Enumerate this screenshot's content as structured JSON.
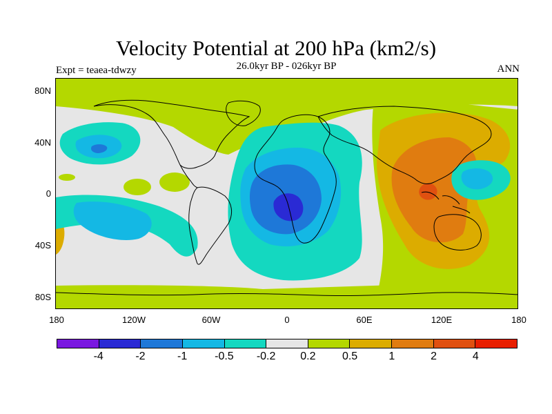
{
  "title": "Velocity Potential at 200 hPa (km2/s)",
  "subtitle": "26.0kyr BP - 026kyr BP",
  "expt_label": "Expt = teaea-tdwzy",
  "season": "ANN",
  "lat_ticks": [
    "80N",
    "40N",
    "0",
    "40S",
    "80S"
  ],
  "lon_ticks": [
    "180",
    "120W",
    "60W",
    "0",
    "60E",
    "120E",
    "180"
  ],
  "colorbar": {
    "colors": [
      "#7a18e0",
      "#2a2ad4",
      "#1e78d8",
      "#14b8e4",
      "#14d8c0",
      "#e6e6e6",
      "#b4d800",
      "#dcac00",
      "#e07c10",
      "#e05010",
      "#e81e00"
    ],
    "labels": [
      "-4",
      "-2",
      "-1",
      "-0.5",
      "-0.2",
      "0.2",
      "0.5",
      "1",
      "2",
      "4"
    ]
  },
  "fields": {
    "strong_negative": "#2a2ad4",
    "negative": "#1e78d8",
    "weak_negative": "#14b8e4",
    "slight_negative": "#14d8c0",
    "neutral": "#e6e6e6",
    "slight_positive": "#b4d800",
    "weak_positive": "#dcac00",
    "positive": "#e07c10",
    "strong_positive": "#e05010"
  }
}
